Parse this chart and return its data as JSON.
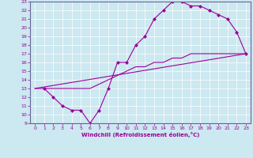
{
  "xlabel": "Windchill (Refroidissement éolien,°C)",
  "bg_color": "#cce8f0",
  "line_color": "#990099",
  "xlim": [
    -0.5,
    23.5
  ],
  "ylim": [
    9,
    23
  ],
  "xticks": [
    0,
    1,
    2,
    3,
    4,
    5,
    6,
    7,
    8,
    9,
    10,
    11,
    12,
    13,
    14,
    15,
    16,
    17,
    18,
    19,
    20,
    21,
    22,
    23
  ],
  "yticks": [
    9,
    10,
    11,
    12,
    13,
    14,
    15,
    16,
    17,
    18,
    19,
    20,
    21,
    22,
    23
  ],
  "line1_x": [
    1,
    2,
    3,
    4,
    5,
    6,
    7,
    8,
    9,
    10,
    11,
    12,
    13,
    14,
    15,
    16,
    17,
    18,
    19,
    20,
    21,
    22,
    23
  ],
  "line1_y": [
    13,
    12,
    11,
    10.5,
    10.5,
    9,
    10.5,
    13,
    16,
    16,
    18,
    19,
    21,
    22,
    23,
    23,
    22.5,
    22.5,
    22,
    21.5,
    21,
    19.5,
    17
  ],
  "line2_x": [
    0,
    1,
    2,
    3,
    4,
    5,
    6,
    7,
    8,
    9,
    10,
    11,
    12,
    13,
    14,
    15,
    16,
    17,
    18,
    19,
    20,
    21,
    22,
    23
  ],
  "line2_y": [
    13,
    13,
    13,
    13,
    13,
    13,
    13,
    13.5,
    14,
    14.5,
    15,
    15.5,
    15.5,
    16,
    16,
    16.5,
    16.5,
    17,
    17,
    17,
    17,
    17,
    17,
    17
  ],
  "line3_x": [
    0,
    23
  ],
  "line3_y": [
    13,
    17
  ]
}
